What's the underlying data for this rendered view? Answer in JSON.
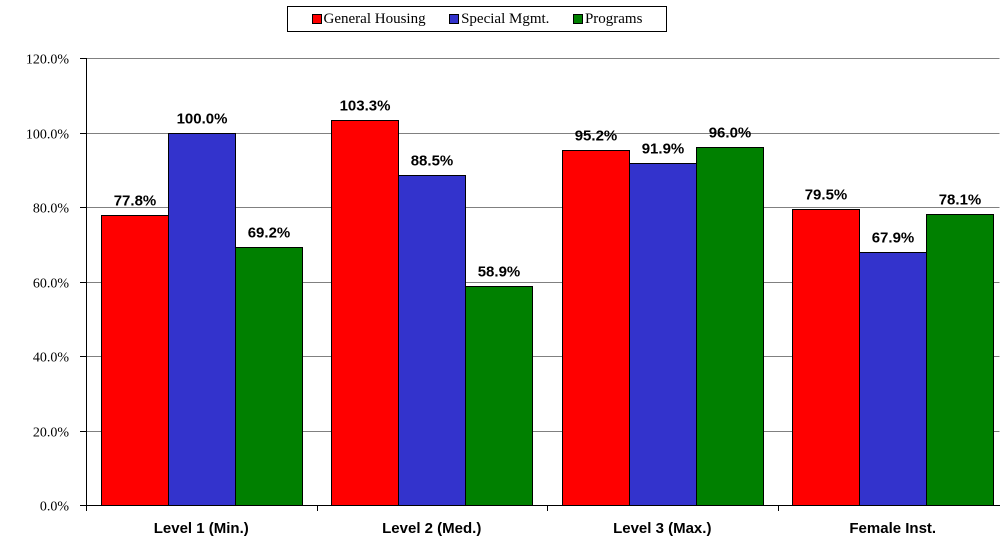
{
  "chart_data": {
    "type": "bar",
    "categories": [
      "Level 1 (Min.)",
      "Level 2 (Med.)",
      "Level 3 (Max.)",
      "Female Inst."
    ],
    "series": [
      {
        "name": "General Housing",
        "color": "#FF0000",
        "values": [
          77.8,
          103.3,
          95.2,
          79.5
        ],
        "labels": [
          "77.8%",
          "103.3%",
          "95.2%",
          "79.5%"
        ]
      },
      {
        "name": "Special Mgmt.",
        "color": "#3333CC",
        "values": [
          100.0,
          88.5,
          91.9,
          67.9
        ],
        "labels": [
          "100.0%",
          "88.5%",
          "91.9%",
          "67.9%"
        ]
      },
      {
        "name": "Programs",
        "color": "#008000",
        "values": [
          69.2,
          58.9,
          96.0,
          78.1
        ],
        "labels": [
          "69.2%",
          "58.9%",
          "96.0%",
          "78.1%"
        ]
      }
    ],
    "ylim": [
      0,
      120
    ],
    "y_ticks": [
      0,
      20,
      40,
      60,
      80,
      100,
      120
    ],
    "y_tick_labels": [
      "0.0%",
      "20.0%",
      "40.0%",
      "60.0%",
      "80.0%",
      "100.0%",
      "120.0%"
    ],
    "grid": true,
    "legend_position": "top-center",
    "bar_outline_color": "#000000",
    "gridline_color": "#808080",
    "axis_color": "#000000"
  }
}
